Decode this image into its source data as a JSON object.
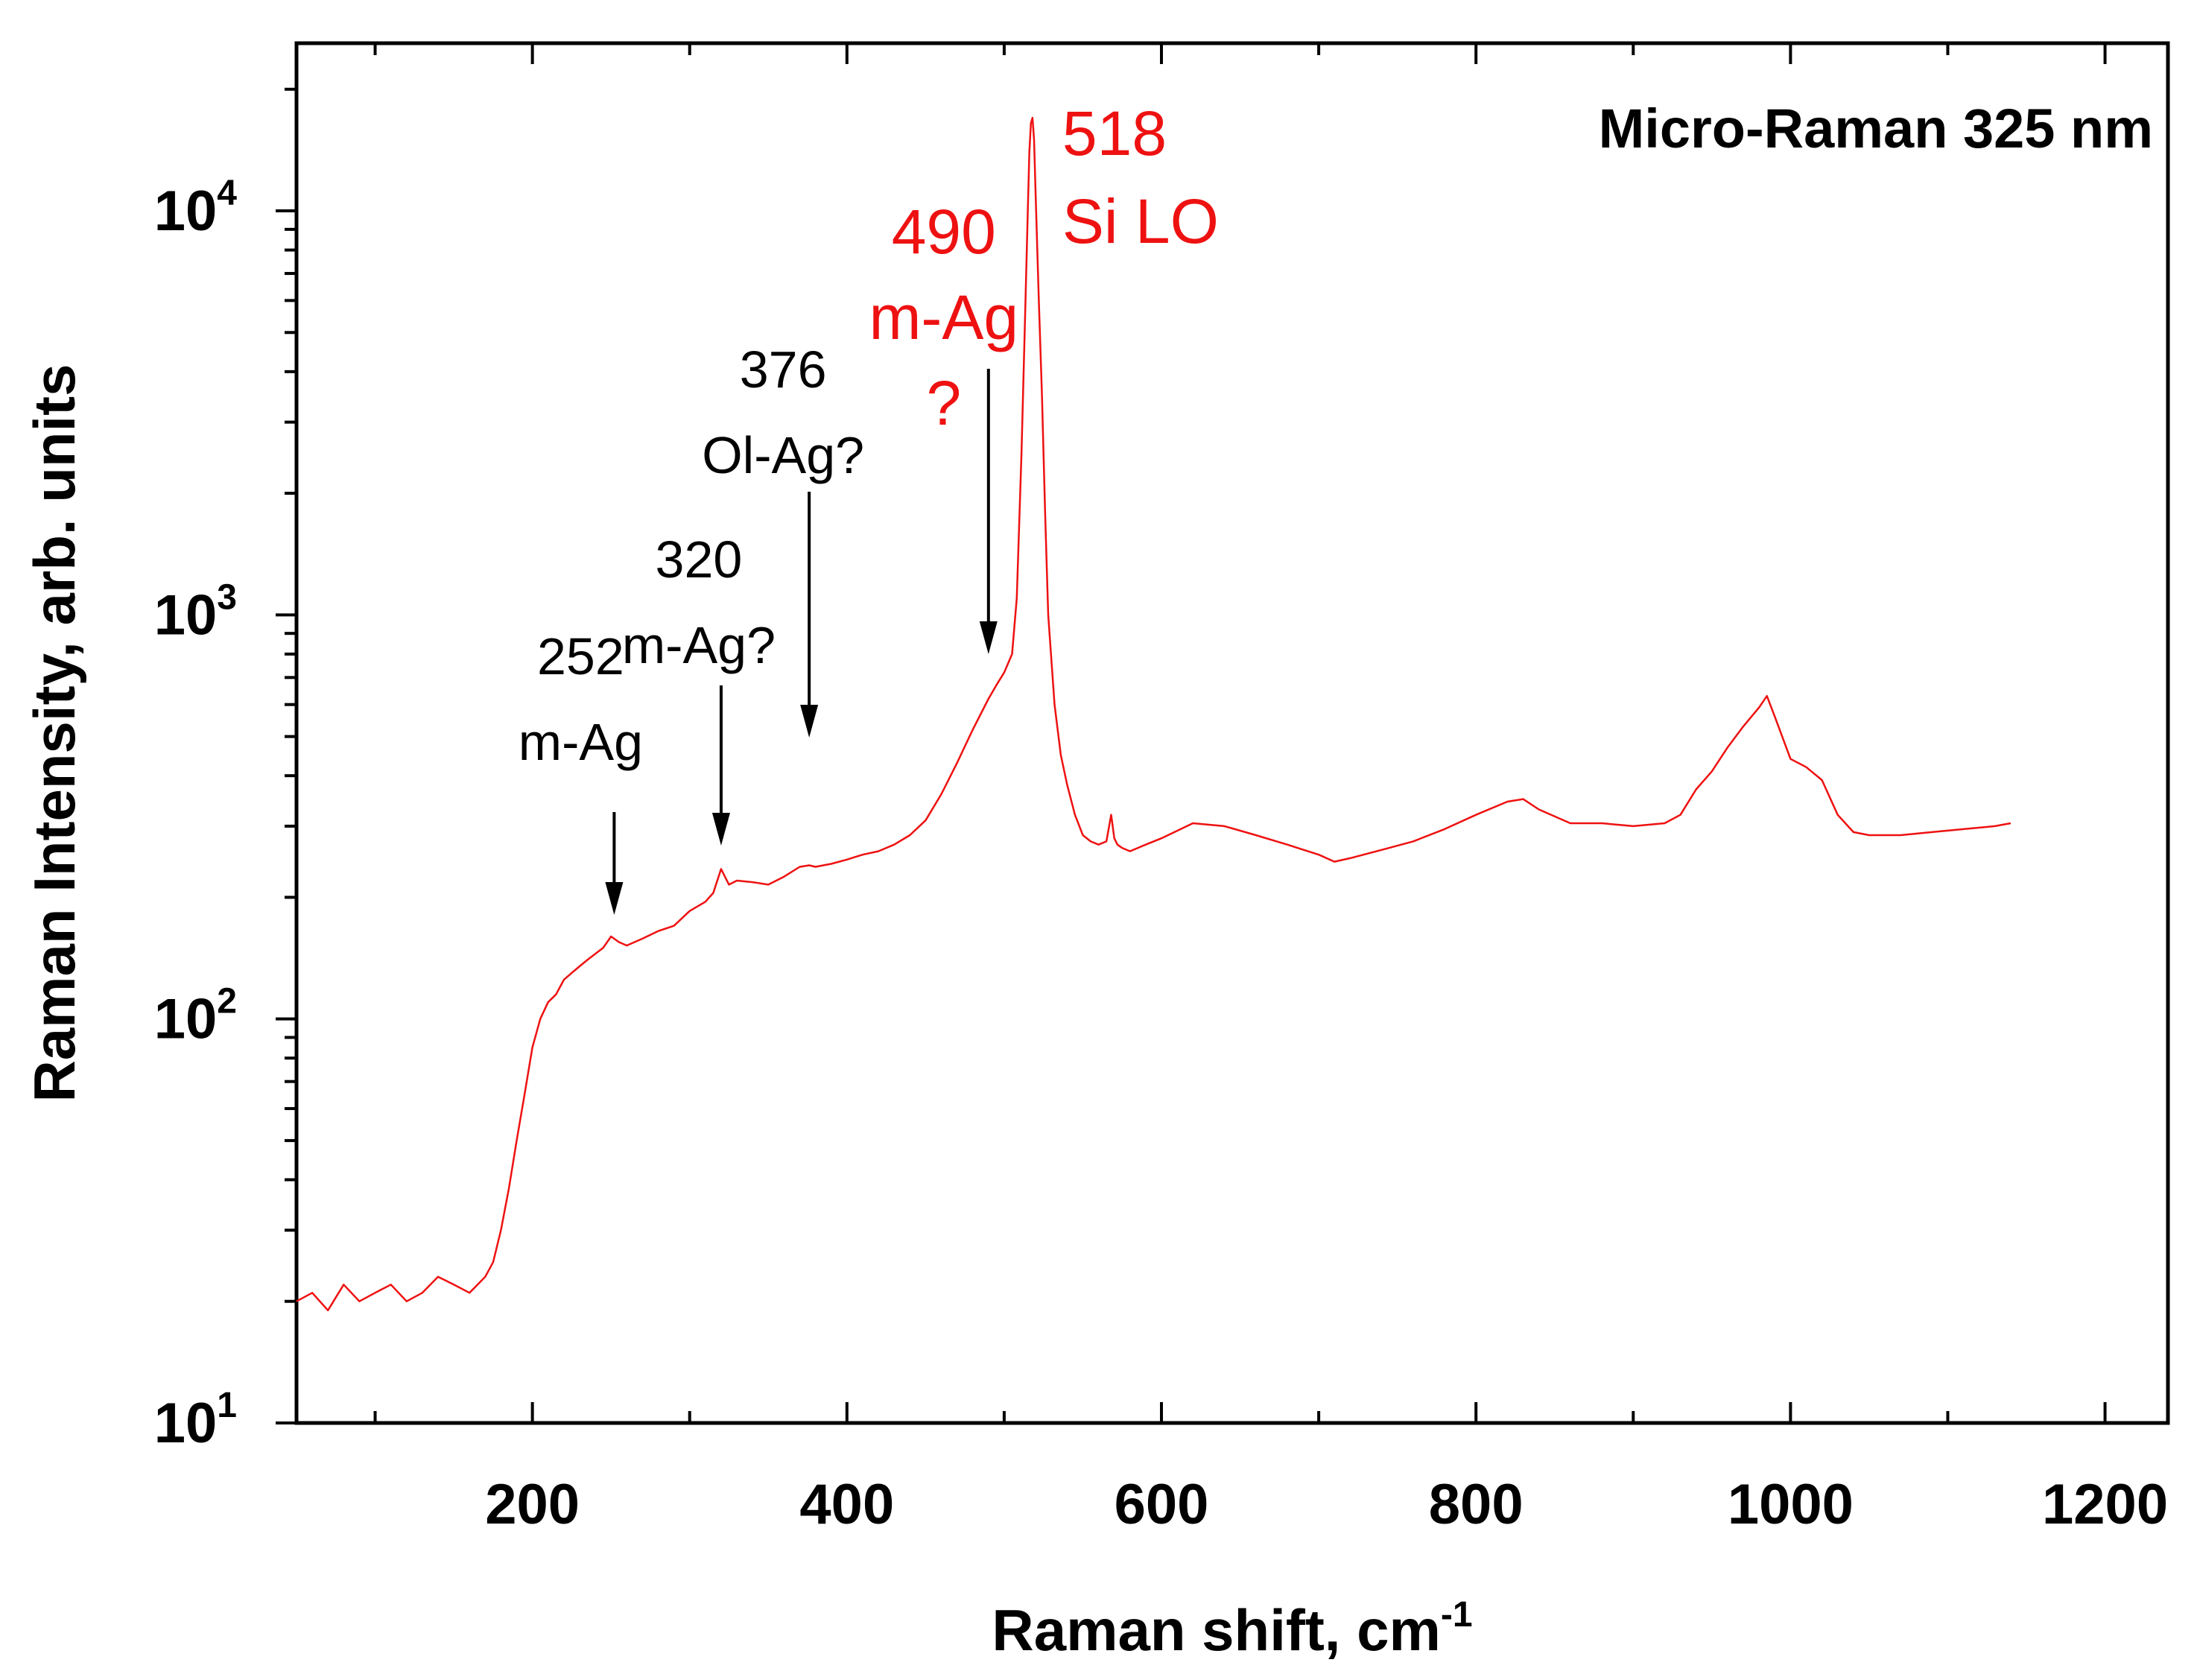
{
  "chart_data": {
    "type": "line",
    "title": "Micro-Raman 325 nm",
    "xlabel": "Raman shift, cm",
    "xlabel_superscript": "-1",
    "ylabel": "Raman Intensity, arb. units",
    "xscale": "linear",
    "yscale": "log",
    "xlim": [
      50,
      1240
    ],
    "ylim": [
      10,
      26000
    ],
    "xticks": [
      200,
      400,
      600,
      800,
      1000,
      1200
    ],
    "xtick_labels": [
      "200",
      "400",
      "600",
      "800",
      "1000",
      "1200"
    ],
    "yticks": [
      {
        "value": 10,
        "base": "10",
        "exp": "1"
      },
      {
        "value": 100,
        "base": "10",
        "exp": "2"
      },
      {
        "value": 1000,
        "base": "10",
        "exp": "3"
      },
      {
        "value": 10000,
        "base": "10",
        "exp": "4"
      }
    ],
    "series": [
      {
        "name": "Micro-Raman 325 nm",
        "color": "#ee1111",
        "x": [
          50,
          60,
          70,
          80,
          90,
          100,
          110,
          120,
          130,
          140,
          150,
          160,
          170,
          175,
          180,
          185,
          190,
          195,
          200,
          205,
          210,
          215,
          220,
          225,
          230,
          235,
          240,
          245,
          250,
          255,
          260,
          270,
          280,
          290,
          300,
          310,
          315,
          320,
          325,
          330,
          340,
          350,
          360,
          370,
          376,
          380,
          390,
          400,
          410,
          420,
          430,
          440,
          450,
          460,
          470,
          480,
          490,
          495,
          500,
          505,
          508,
          511,
          513,
          515,
          516,
          517,
          518,
          519,
          520,
          522,
          524,
          526,
          528,
          532,
          536,
          540,
          545,
          550,
          555,
          560,
          565,
          568,
          570,
          572,
          575,
          580,
          590,
          600,
          620,
          640,
          660,
          680,
          700,
          710,
          720,
          740,
          760,
          780,
          800,
          820,
          830,
          840,
          860,
          880,
          900,
          920,
          930,
          940,
          950,
          960,
          970,
          980,
          985,
          990,
          1000,
          1010,
          1020,
          1030,
          1040,
          1050,
          1070,
          1090,
          1110,
          1130,
          1140
        ],
        "y": [
          20,
          21,
          19,
          22,
          20,
          21,
          22,
          20,
          21,
          23,
          22,
          21,
          23,
          25,
          30,
          38,
          50,
          65,
          85,
          100,
          110,
          115,
          125,
          130,
          135,
          140,
          145,
          150,
          160,
          155,
          152,
          158,
          165,
          170,
          185,
          195,
          205,
          235,
          215,
          220,
          218,
          215,
          225,
          238,
          240,
          238,
          242,
          248,
          255,
          260,
          270,
          285,
          310,
          360,
          430,
          520,
          620,
          670,
          720,
          800,
          1100,
          2500,
          5000,
          10000,
          14000,
          16500,
          17000,
          15000,
          11000,
          6000,
          3500,
          1800,
          1000,
          600,
          450,
          380,
          320,
          285,
          275,
          270,
          275,
          320,
          280,
          270,
          265,
          260,
          270,
          280,
          305,
          300,
          285,
          270,
          255,
          245,
          250,
          262,
          275,
          295,
          320,
          345,
          350,
          330,
          305,
          305,
          300,
          305,
          320,
          370,
          410,
          470,
          530,
          590,
          630,
          560,
          440,
          420,
          390,
          320,
          290,
          285,
          285,
          290,
          295,
          300,
          305
        ]
      }
    ],
    "annotations": [
      {
        "x": 252,
        "lines": [
          "252",
          "m-Ag"
        ],
        "color": "#000000"
      },
      {
        "x": 320,
        "lines": [
          "320",
          "m-Ag?"
        ],
        "color": "#000000"
      },
      {
        "x": 376,
        "lines": [
          "376",
          "Ol-Ag?"
        ],
        "color": "#000000"
      },
      {
        "x": 490,
        "lines": [
          "490",
          "m-Ag",
          "?"
        ],
        "color": "#ee1111"
      },
      {
        "x": 518,
        "lines": [
          "518",
          "Si LO"
        ],
        "color": "#ee1111"
      }
    ]
  }
}
